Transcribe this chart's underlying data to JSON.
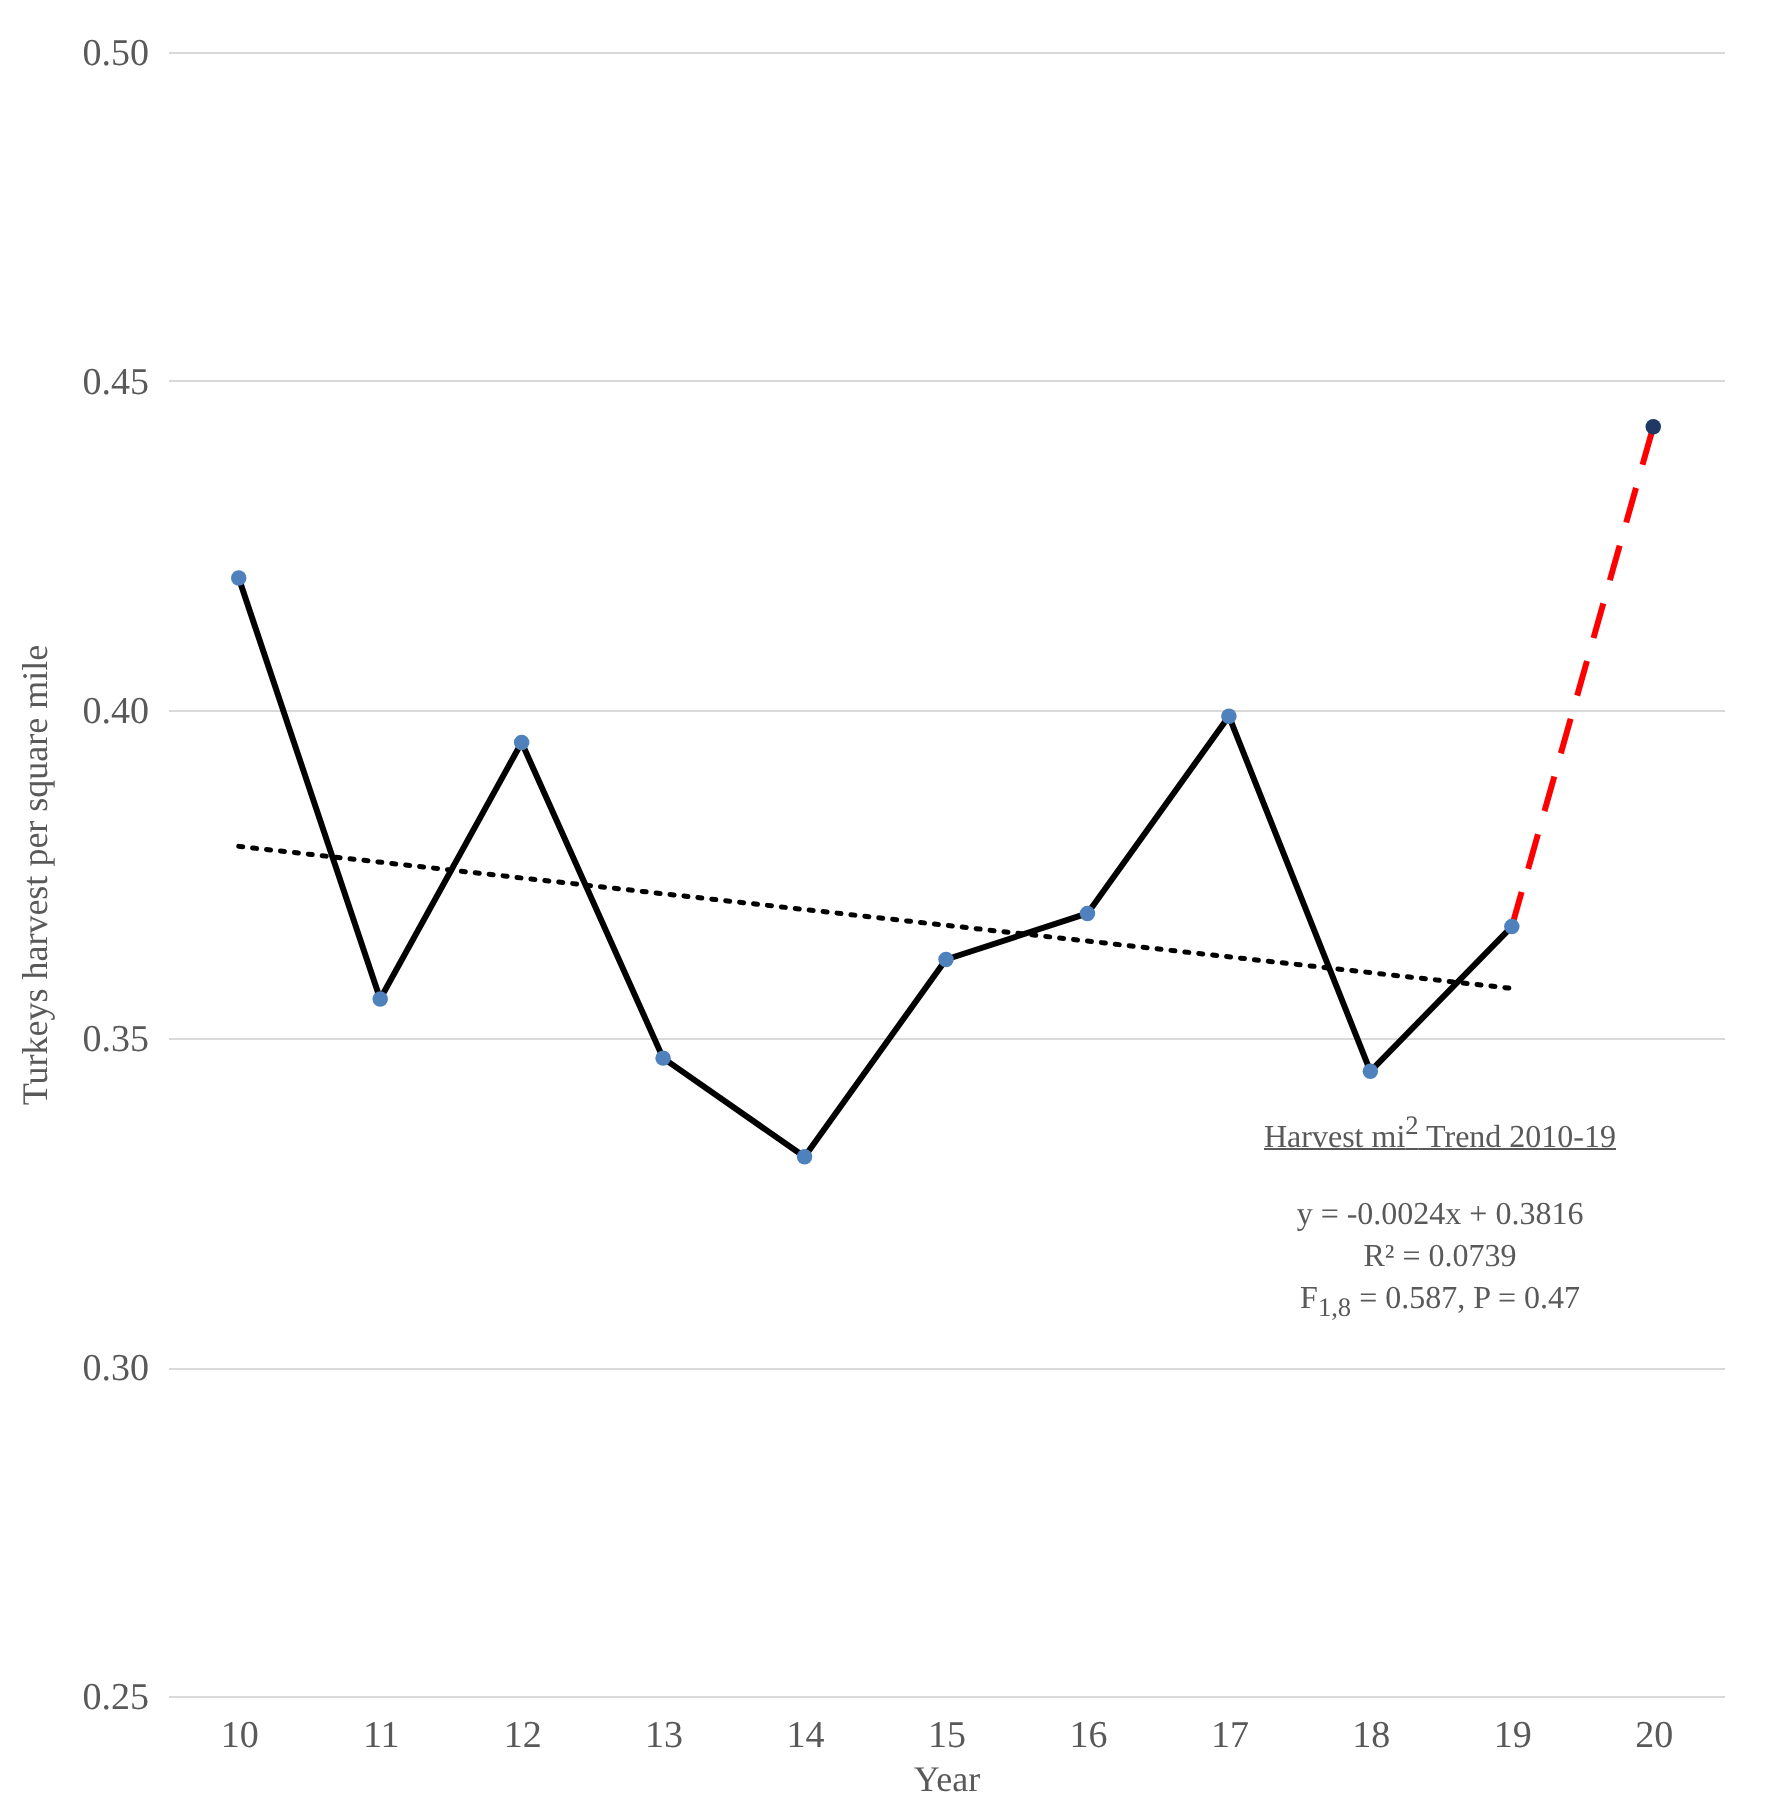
{
  "chart_data": {
    "type": "line",
    "xlabel": "Year",
    "ylabel": "Turkeys harvest  per square mile",
    "x": [
      10,
      11,
      12,
      13,
      14,
      15,
      16,
      17,
      18,
      19,
      20
    ],
    "xlim": [
      9.5,
      20.5
    ],
    "xticks": [
      10,
      11,
      12,
      13,
      14,
      15,
      16,
      17,
      18,
      19,
      20
    ],
    "ylim": [
      0.25,
      0.5
    ],
    "yticks": [
      0.25,
      {
        "value": 0.3,
        "label": "0.30"
      },
      0.35,
      {
        "value": 0.4,
        "label": "0.40"
      },
      0.45,
      {
        "value": 0.5,
        "label": "0.50"
      }
    ],
    "grid": "y",
    "series": [
      {
        "color": "#ff0000",
        "line_style": "dashed",
        "marker": "none",
        "values": [
          null,
          null,
          null,
          null,
          null,
          null,
          null,
          null,
          null,
          0.367,
          0.443
        ]
      },
      {
        "color": "#000000",
        "line_style": "solid",
        "marker": "none",
        "values": [
          0.42,
          0.356,
          0.395,
          0.347,
          0.332,
          0.362,
          0.369,
          0.399,
          0.345,
          0.367,
          null
        ]
      },
      {
        "type": "scatter",
        "color": "#4f81bd",
        "marker": "circle",
        "values": [
          0.42,
          0.356,
          0.395,
          0.347,
          0.332,
          0.362,
          0.369,
          0.399,
          0.345,
          0.367,
          null
        ]
      },
      {
        "type": "scatter",
        "color": "#1f3864",
        "marker": "circle",
        "values": [
          null,
          null,
          null,
          null,
          null,
          null,
          null,
          null,
          null,
          null,
          0.443
        ]
      },
      {
        "color": "#000000",
        "line_style": "dotted",
        "marker": "none",
        "x": [
          10,
          19
        ],
        "values": [
          0.3792,
          0.3576
        ]
      }
    ],
    "annotations": [
      "Harvest mi$^{2}$ Trend 2010-19",
      "y = -0.0024x + 0.3816",
      "R² = 0.0739",
      "F$_{1,8}$ = 0.587, P = 0.47"
    ]
  }
}
